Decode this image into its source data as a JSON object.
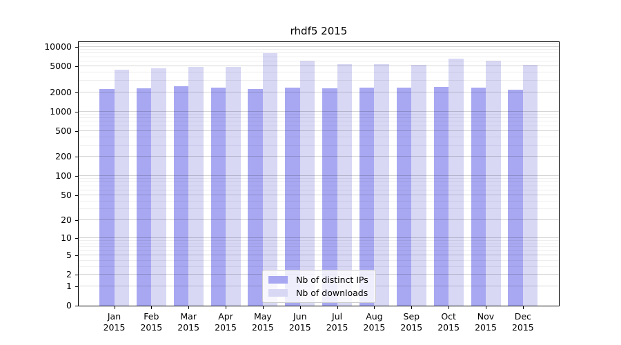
{
  "chart_data": {
    "type": "bar",
    "title": "rhdf5 2015",
    "categories": [
      "Jan 2015",
      "Feb 2015",
      "Mar 2015",
      "Apr 2015",
      "May 2015",
      "Jun 2015",
      "Jul 2015",
      "Aug 2015",
      "Sep 2015",
      "Oct 2015",
      "Nov 2015",
      "Dec 2015"
    ],
    "series": [
      {
        "name": "Nb of distinct IPs",
        "color": "#a8a8f2",
        "values": [
          2250,
          2320,
          2470,
          2350,
          2250,
          2370,
          2290,
          2370,
          2370,
          2420,
          2370,
          2170
        ]
      },
      {
        "name": "Nb of downloads",
        "color": "#d8d8f5",
        "values": [
          4430,
          4650,
          4900,
          4890,
          8000,
          6080,
          5470,
          5400,
          5300,
          6620,
          6080,
          5250
        ]
      }
    ],
    "xlabel": "",
    "ylabel": "",
    "y_axis": {
      "scale": "log1p",
      "ticks": [
        0,
        1,
        2,
        5,
        10,
        20,
        50,
        100,
        200,
        500,
        1000,
        2000,
        5000,
        10000
      ],
      "minor_gridlines": [
        3,
        4,
        6,
        7,
        8,
        9,
        30,
        40,
        60,
        70,
        80,
        90,
        300,
        400,
        600,
        700,
        800,
        900,
        3000,
        4000,
        6000,
        7000,
        8000,
        9000,
        11000
      ],
      "range_top": 12150
    },
    "grid": true,
    "legend": {
      "position": "lower center",
      "entries": [
        "Nb of distinct IPs",
        "Nb of downloads"
      ]
    }
  }
}
